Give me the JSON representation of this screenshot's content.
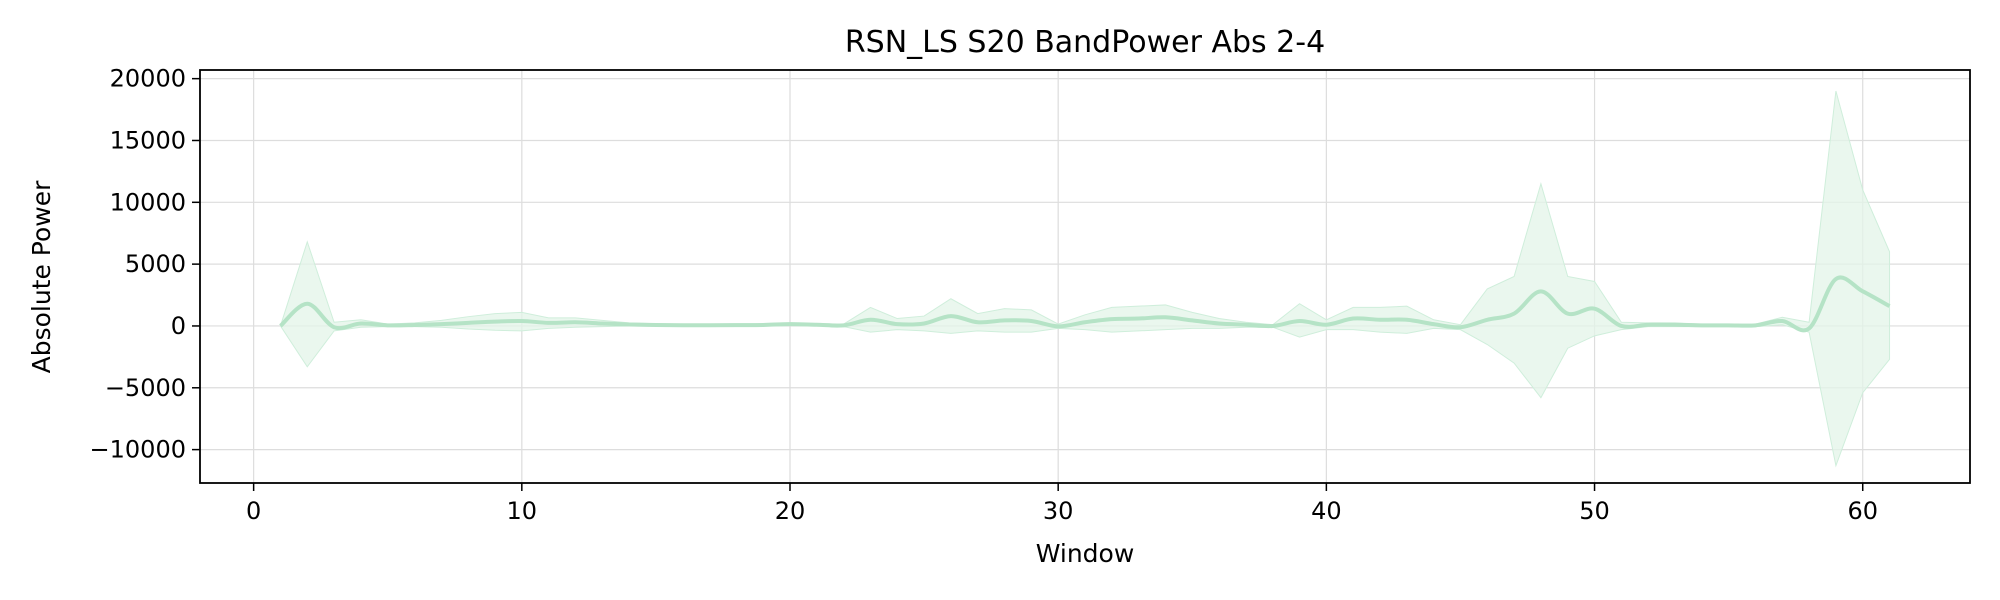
{
  "chart_data": {
    "type": "line",
    "title": "RSN_LS S20 BandPower Abs 2-4",
    "xlabel": "Window",
    "ylabel": "Absolute Power",
    "xlim": [
      -2,
      64
    ],
    "ylim": [
      -12700,
      20700
    ],
    "xticks": [
      0,
      10,
      20,
      30,
      40,
      50,
      60
    ],
    "yticks": [
      20000,
      15000,
      10000,
      5000,
      0,
      -5000,
      -10000
    ],
    "xtick_labels": [
      "0",
      "10",
      "20",
      "30",
      "40",
      "50",
      "60"
    ],
    "ytick_labels": [
      "20000",
      "15000",
      "10000",
      "5000",
      "0",
      "−5000",
      "−10000"
    ],
    "grid": true,
    "colors": {
      "line": "#b5e3c6",
      "band": "#e3f4e8",
      "band_edge": "#cfeedb"
    },
    "series": [
      {
        "x": [
          1,
          2,
          3,
          4,
          5,
          6,
          7,
          8,
          9,
          10,
          11,
          12,
          13,
          14,
          15,
          16,
          17,
          18,
          19,
          20,
          21,
          22,
          23,
          24,
          25,
          26,
          27,
          28,
          29,
          30,
          31,
          32,
          33,
          34,
          35,
          36,
          37,
          38,
          39,
          40,
          41,
          42,
          43,
          44,
          45,
          46,
          47,
          48,
          49,
          50,
          51,
          52,
          53,
          54,
          55,
          56,
          57,
          58,
          59,
          60,
          61
        ],
        "mean": [
          0,
          1800,
          -100,
          200,
          50,
          80,
          150,
          250,
          350,
          400,
          250,
          300,
          200,
          120,
          80,
          60,
          60,
          70,
          80,
          150,
          100,
          50,
          500,
          150,
          200,
          800,
          300,
          450,
          400,
          -30,
          300,
          550,
          600,
          700,
          450,
          200,
          100,
          0,
          400,
          100,
          600,
          500,
          500,
          150,
          -100,
          500,
          1000,
          2800,
          1000,
          1400,
          0,
          100,
          100,
          50,
          50,
          50,
          400,
          -200,
          3800,
          2800,
          1600
        ],
        "upper": [
          0,
          6800,
          300,
          500,
          150,
          250,
          450,
          750,
          1000,
          1100,
          650,
          650,
          450,
          250,
          180,
          150,
          150,
          180,
          180,
          250,
          200,
          150,
          1500,
          600,
          800,
          2200,
          1000,
          1400,
          1300,
          150,
          900,
          1500,
          1600,
          1700,
          1100,
          600,
          300,
          100,
          1800,
          500,
          1500,
          1500,
          1600,
          500,
          100,
          3000,
          4000,
          11500,
          4000,
          3600,
          300,
          250,
          250,
          150,
          150,
          150,
          700,
          300,
          19000,
          11000,
          6000
        ],
        "lower": [
          0,
          -3300,
          -400,
          -100,
          -50,
          -50,
          -100,
          -250,
          -350,
          -400,
          -200,
          -100,
          -50,
          0,
          -20,
          -20,
          -20,
          -30,
          -20,
          50,
          0,
          -50,
          -500,
          -300,
          -400,
          -600,
          -400,
          -500,
          -500,
          -200,
          -300,
          -500,
          -400,
          -300,
          -200,
          -200,
          -100,
          -100,
          -900,
          -300,
          -300,
          -500,
          -600,
          -200,
          -300,
          -1500,
          -3000,
          -5800,
          -1800,
          -800,
          -300,
          -50,
          -50,
          -50,
          -50,
          -50,
          100,
          -500,
          -11300,
          -5400,
          -2700
        ]
      }
    ]
  }
}
